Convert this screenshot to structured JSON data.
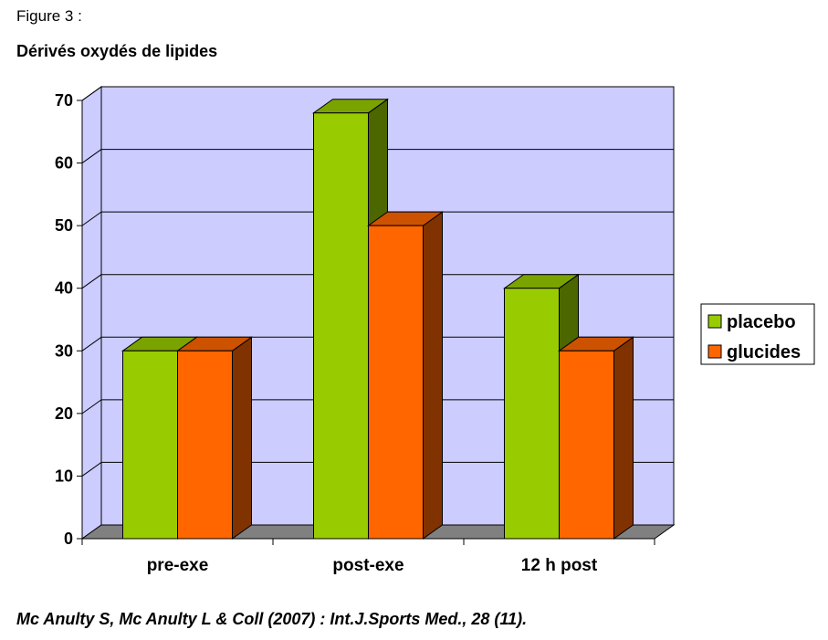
{
  "figure_label": "Figure 3 :",
  "citation": "Mc Anulty S, Mc Anulty L & Coll (2007) : Int.J.Sports Med., 28 (11).",
  "colors": {
    "wall": "#ccccff",
    "floor": "#808080",
    "placebo": "#99cc00",
    "placebo_top": "#7aa300",
    "placebo_side": "#4c6600",
    "glucides": "#ff6600",
    "glucides_top": "#cc5200",
    "glucides_side": "#803300"
  },
  "chart_data": {
    "type": "bar",
    "title": "Dérivés oxydés de lipides",
    "xlabel": "",
    "ylabel": "",
    "categories": [
      "pre-exe",
      "post-exe",
      "12 h post"
    ],
    "series": [
      {
        "name": "placebo",
        "values": [
          30,
          68,
          40
        ]
      },
      {
        "name": "glucides",
        "values": [
          30,
          50,
          30
        ]
      }
    ],
    "ylim": [
      0,
      70
    ],
    "yticks": [
      0,
      10,
      20,
      30,
      40,
      50,
      60,
      70
    ],
    "grid": true,
    "legend_position": "right",
    "style": "3d-clustered"
  }
}
